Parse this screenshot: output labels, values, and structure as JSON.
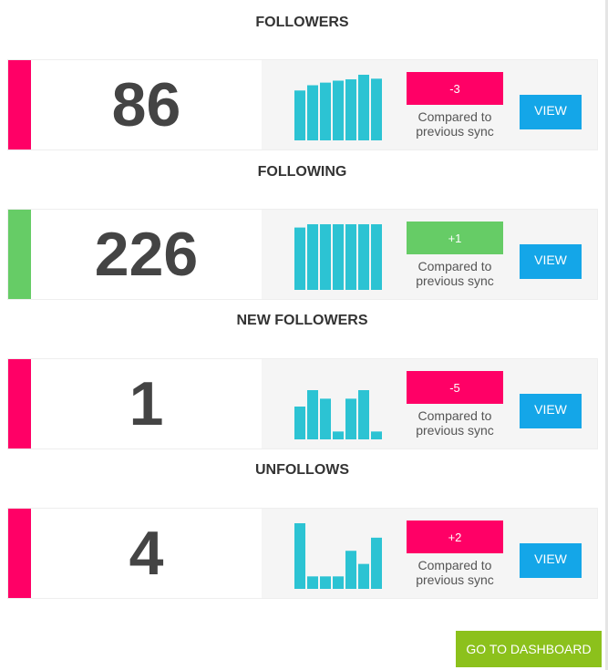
{
  "colors": {
    "accent_down": "#ff0066",
    "accent_up": "#66cc66",
    "spark": "#2cc3d3",
    "view_button": "#14a6e8",
    "dashboard_button": "#8cc11c"
  },
  "compare_line1": "Compared to",
  "compare_line2": "previous sync",
  "view_label": "VIEW",
  "dashboard_label": "GO TO DASHBOARD",
  "sections": [
    {
      "title": "FOLLOWERS",
      "count": "86",
      "delta": "-3",
      "trend": "down",
      "spark": [
        0.76,
        0.84,
        0.88,
        0.91,
        0.93,
        1.0,
        0.94
      ]
    },
    {
      "title": "FOLLOWING",
      "count": "226",
      "delta": "+1",
      "trend": "up",
      "spark": [
        0.95,
        1.0,
        1.0,
        1.0,
        1.0,
        1.0,
        1.0
      ]
    },
    {
      "title": "NEW FOLLOWERS",
      "count": "1",
      "delta": "-5",
      "trend": "down",
      "spark": [
        0.5,
        0.75,
        0.62,
        0.12,
        0.62,
        0.75,
        0.12
      ]
    },
    {
      "title": "UNFOLLOWS",
      "count": "4",
      "delta": "+2",
      "trend": "down",
      "spark": [
        1.0,
        0.19,
        0.19,
        0.19,
        0.58,
        0.38,
        0.78
      ]
    }
  ]
}
